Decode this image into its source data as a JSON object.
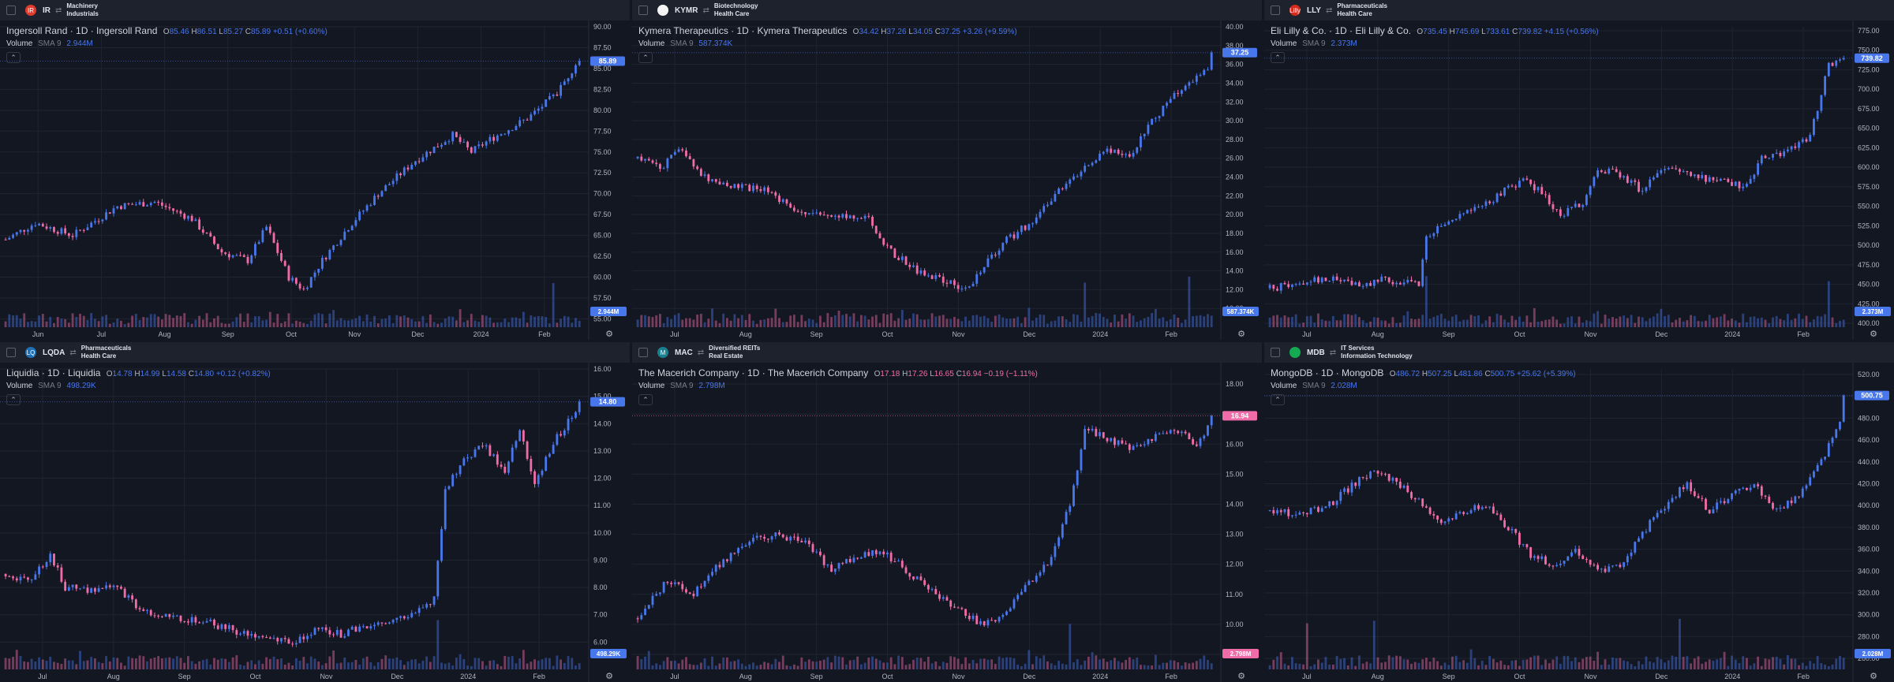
{
  "colors": {
    "up": "#4876eb",
    "down": "#f06ca8",
    "bg": "#131722",
    "grid": "#1f2430",
    "text": "#b2b5be"
  },
  "panels": [
    {
      "ticker": "IR",
      "sector": "Machinery",
      "industry": "Industrials",
      "logo_icon": "ir-logo-icon",
      "logo_color": "#e23b2d",
      "logo_text": "IR",
      "title": "Ingersoll Rand · 1D · Ingersoll Rand",
      "o": "85.46",
      "h": "86.51",
      "l": "85.27",
      "c": "85.89",
      "chg": "+0.51 (+0.60%)",
      "chg_dir": "up",
      "volume_label": "Volume",
      "sma_label": "SMA 9",
      "volume_sma": "2.944M",
      "last_price_tag": "85.89",
      "volume_tag": "2.944M",
      "chart_data": {
        "type": "candlestick",
        "series_name": "IR",
        "y_ticks": [
          "90.00",
          "87.50",
          "85.00",
          "82.50",
          "80.00",
          "77.50",
          "75.00",
          "72.50",
          "70.00",
          "67.50",
          "65.00",
          "62.50",
          "60.00",
          "57.50",
          "55.00"
        ],
        "ylim": [
          54,
          90
        ],
        "x_ticks": [
          "Jun",
          "Jul",
          "Aug",
          "Sep",
          "Oct",
          "Nov",
          "Dec",
          "2024",
          "Feb"
        ],
        "keypoints": [
          [
            0,
            64.5
          ],
          [
            8,
            66.5
          ],
          [
            18,
            65
          ],
          [
            30,
            68.5
          ],
          [
            40,
            69
          ],
          [
            50,
            67
          ],
          [
            58,
            63
          ],
          [
            65,
            62
          ],
          [
            70,
            66
          ],
          [
            76,
            60
          ],
          [
            80,
            58.5
          ],
          [
            85,
            62
          ],
          [
            92,
            66
          ],
          [
            100,
            70
          ],
          [
            110,
            74
          ],
          [
            120,
            77
          ],
          [
            125,
            75
          ],
          [
            130,
            76.5
          ],
          [
            140,
            79
          ],
          [
            148,
            82
          ],
          [
            155,
            87
          ]
        ],
        "last_price": 85.89,
        "bars": 155,
        "volume_spike": [
          147
        ]
      }
    },
    {
      "ticker": "KYMR",
      "sector": "Biotechnology",
      "industry": "Health Care",
      "logo_icon": "kymr-logo-icon",
      "logo_color": "#f5f5f5",
      "logo_text": "",
      "title": "Kymera Therapeutics · 1D · Kymera Therapeutics",
      "o": "34.42",
      "h": "37.26",
      "l": "34.05",
      "c": "37.25",
      "chg": "+3.26 (+9.59%)",
      "chg_dir": "up",
      "volume_label": "Volume",
      "sma_label": "SMA 9",
      "volume_sma": "587.374K",
      "last_price_tag": "37.25",
      "volume_tag": "587.374K",
      "chart_data": {
        "type": "candlestick",
        "series_name": "KYMR",
        "y_ticks": [
          "40.00",
          "38.00",
          "36.00",
          "34.00",
          "32.00",
          "30.00",
          "28.00",
          "26.00",
          "24.00",
          "22.00",
          "20.00",
          "18.00",
          "16.00",
          "14.00",
          "12.00",
          "10.00"
        ],
        "ylim": [
          8,
          40
        ],
        "x_ticks": [
          "Jul",
          "Aug",
          "Sep",
          "Oct",
          "Nov",
          "Dec",
          "2024",
          "Feb"
        ],
        "keypoints": [
          [
            0,
            26
          ],
          [
            6,
            25
          ],
          [
            12,
            27
          ],
          [
            18,
            24
          ],
          [
            25,
            23
          ],
          [
            35,
            22.5
          ],
          [
            45,
            20
          ],
          [
            55,
            20
          ],
          [
            62,
            19.5
          ],
          [
            68,
            16
          ],
          [
            75,
            14
          ],
          [
            82,
            13
          ],
          [
            88,
            12
          ],
          [
            92,
            14
          ],
          [
            98,
            17
          ],
          [
            105,
            19
          ],
          [
            112,
            22
          ],
          [
            120,
            25
          ],
          [
            126,
            27
          ],
          [
            132,
            26
          ],
          [
            138,
            30
          ],
          [
            145,
            33
          ],
          [
            152,
            35
          ],
          [
            155,
            37.3
          ]
        ],
        "last_price": 37.25,
        "bars": 155,
        "volume_spike": [
          120,
          148
        ]
      }
    },
    {
      "ticker": "LLY",
      "sector": "Pharmaceuticals",
      "industry": "Health Care",
      "logo_icon": "lly-logo-icon",
      "logo_color": "#d52b1e",
      "logo_text": "Lilly",
      "title": "Eli Lilly & Co. · 1D · Eli Lilly & Co.",
      "o": "735.45",
      "h": "745.69",
      "l": "733.61",
      "c": "739.82",
      "chg": "+4.15 (+0.56%)",
      "chg_dir": "up",
      "volume_label": "Volume",
      "sma_label": "SMA 9",
      "volume_sma": "2.373M",
      "last_price_tag": "739.82",
      "volume_tag": "2.373M",
      "chart_data": {
        "type": "candlestick",
        "series_name": "LLY",
        "y_ticks": [
          "775.00",
          "750.00",
          "725.00",
          "700.00",
          "675.00",
          "650.00",
          "625.00",
          "600.00",
          "575.00",
          "550.00",
          "525.00",
          "500.00",
          "475.00",
          "450.00",
          "425.00",
          "400.00"
        ],
        "ylim": [
          395,
          780
        ],
        "x_ticks": [
          "Jul",
          "Aug",
          "Sep",
          "Oct",
          "Nov",
          "Dec",
          "2024",
          "Feb"
        ],
        "keypoints": [
          [
            0,
            445
          ],
          [
            8,
            450
          ],
          [
            15,
            458
          ],
          [
            20,
            455
          ],
          [
            25,
            448
          ],
          [
            30,
            456
          ],
          [
            35,
            452
          ],
          [
            40,
            450
          ],
          [
            42,
            510
          ],
          [
            48,
            530
          ],
          [
            55,
            545
          ],
          [
            60,
            560
          ],
          [
            68,
            585
          ],
          [
            72,
            570
          ],
          [
            78,
            540
          ],
          [
            84,
            555
          ],
          [
            88,
            600
          ],
          [
            94,
            590
          ],
          [
            100,
            570
          ],
          [
            106,
            600
          ],
          [
            112,
            590
          ],
          [
            118,
            585
          ],
          [
            124,
            580
          ],
          [
            128,
            575
          ],
          [
            132,
            610
          ],
          [
            138,
            620
          ],
          [
            145,
            640
          ],
          [
            150,
            730
          ],
          [
            155,
            740
          ]
        ],
        "last_price": 739.82,
        "bars": 155,
        "volume_spike": [
          42,
          150
        ]
      }
    },
    {
      "ticker": "LQDA",
      "sector": "Pharmaceuticals",
      "industry": "Health Care",
      "logo_icon": "lqda-logo-icon",
      "logo_color": "#1f6fb5",
      "logo_text": "LQ",
      "title": "Liquidia · 1D · Liquidia",
      "o": "14.78",
      "h": "14.99",
      "l": "14.58",
      "c": "14.80",
      "chg": "+0.12 (+0.82%)",
      "chg_dir": "up",
      "volume_label": "Volume",
      "sma_label": "SMA 9",
      "volume_sma": "498.29K",
      "last_price_tag": "14.80",
      "volume_tag": "498.29K",
      "chart_data": {
        "type": "candlestick",
        "series_name": "LQDA",
        "y_ticks": [
          "16.00",
          "15.00",
          "14.00",
          "13.00",
          "12.00",
          "11.00",
          "10.00",
          "9.00",
          "8.00",
          "7.00",
          "6.00"
        ],
        "ylim": [
          5,
          16
        ],
        "x_ticks": [
          "Jul",
          "Aug",
          "Sep",
          "Oct",
          "Nov",
          "Dec",
          "2024",
          "Feb"
        ],
        "keypoints": [
          [
            0,
            8.5
          ],
          [
            6,
            8.2
          ],
          [
            12,
            9.2
          ],
          [
            16,
            8.0
          ],
          [
            22,
            7.9
          ],
          [
            30,
            8.0
          ],
          [
            36,
            7.2
          ],
          [
            45,
            6.9
          ],
          [
            55,
            6.7
          ],
          [
            62,
            6.4
          ],
          [
            70,
            6.2
          ],
          [
            78,
            6.0
          ],
          [
            84,
            6.5
          ],
          [
            90,
            6.3
          ],
          [
            96,
            6.6
          ],
          [
            102,
            6.8
          ],
          [
            108,
            7.0
          ],
          [
            112,
            7.2
          ],
          [
            115,
            7.6
          ],
          [
            118,
            11.5
          ],
          [
            122,
            12.5
          ],
          [
            128,
            13.3
          ],
          [
            134,
            12.2
          ],
          [
            138,
            13.8
          ],
          [
            142,
            11.8
          ],
          [
            148,
            13.5
          ],
          [
            155,
            14.8
          ]
        ],
        "last_price": 14.8,
        "bars": 155,
        "volume_spike": [
          116
        ]
      }
    },
    {
      "ticker": "MAC",
      "sector": "Diversified REITs",
      "industry": "Real Estate",
      "logo_icon": "mac-logo-icon",
      "logo_color": "#1a7f8e",
      "logo_text": "M",
      "title": "The Macerich Company · 1D · The Macerich Company",
      "o": "17.18",
      "h": "17.26",
      "l": "16.65",
      "c": "16.94",
      "chg": "−0.19 (−1.11%)",
      "chg_dir": "down",
      "volume_label": "Volume",
      "sma_label": "SMA 9",
      "volume_sma": "2.798M",
      "last_price_tag": "16.94",
      "volume_tag": "2.798M",
      "chart_data": {
        "type": "candlestick",
        "series_name": "MAC",
        "y_ticks": [
          "18.00",
          "17.00",
          "16.00",
          "15.00",
          "14.00",
          "13.00",
          "12.00",
          "11.00",
          "10.00",
          "9.00"
        ],
        "ylim": [
          8.5,
          18.5
        ],
        "x_ticks": [
          "Jul",
          "Aug",
          "Sep",
          "Oct",
          "Nov",
          "Dec",
          "2024",
          "Feb"
        ],
        "keypoints": [
          [
            0,
            10.2
          ],
          [
            8,
            11.5
          ],
          [
            15,
            11.0
          ],
          [
            22,
            12.0
          ],
          [
            30,
            12.8
          ],
          [
            38,
            13.0
          ],
          [
            45,
            12.7
          ],
          [
            52,
            11.8
          ],
          [
            58,
            12.2
          ],
          [
            65,
            12.5
          ],
          [
            72,
            11.8
          ],
          [
            80,
            11.0
          ],
          [
            86,
            10.5
          ],
          [
            92,
            10.0
          ],
          [
            98,
            10.3
          ],
          [
            104,
            11.2
          ],
          [
            110,
            12.0
          ],
          [
            116,
            14.0
          ],
          [
            120,
            16.5
          ],
          [
            126,
            16.2
          ],
          [
            132,
            15.8
          ],
          [
            138,
            16.2
          ],
          [
            144,
            16.5
          ],
          [
            150,
            16.0
          ],
          [
            155,
            16.9
          ]
        ],
        "last_price": 16.94,
        "bars": 155,
        "volume_spike": [
          116
        ]
      }
    },
    {
      "ticker": "MDB",
      "sector": "IT Services",
      "industry": "Information Technology",
      "logo_icon": "mdb-logo-icon",
      "logo_color": "#13aa52",
      "logo_text": "",
      "title": "MongoDB · 1D · MongoDB",
      "o": "486.72",
      "h": "507.25",
      "l": "481.86",
      "c": "500.75",
      "chg": "+25.62 (+5.39%)",
      "chg_dir": "up",
      "volume_label": "Volume",
      "sma_label": "SMA 9",
      "volume_sma": "2.028M",
      "last_price_tag": "500.75",
      "volume_tag": "2.028M",
      "chart_data": {
        "type": "candlestick",
        "series_name": "MDB",
        "y_ticks": [
          "520.00",
          "500.00",
          "480.00",
          "460.00",
          "440.00",
          "420.00",
          "400.00",
          "380.00",
          "360.00",
          "340.00",
          "320.00",
          "300.00",
          "280.00",
          "260.00"
        ],
        "ylim": [
          250,
          525
        ],
        "x_ticks": [
          "Jul",
          "Aug",
          "Sep",
          "Oct",
          "Nov",
          "Dec",
          "2024",
          "Feb"
        ],
        "keypoints": [
          [
            0,
            395
          ],
          [
            8,
            392
          ],
          [
            15,
            398
          ],
          [
            22,
            418
          ],
          [
            28,
            432
          ],
          [
            34,
            420
          ],
          [
            40,
            405
          ],
          [
            46,
            385
          ],
          [
            52,
            395
          ],
          [
            58,
            400
          ],
          [
            64,
            380
          ],
          [
            70,
            355
          ],
          [
            76,
            345
          ],
          [
            82,
            360
          ],
          [
            88,
            340
          ],
          [
            94,
            345
          ],
          [
            100,
            375
          ],
          [
            106,
            400
          ],
          [
            112,
            420
          ],
          [
            118,
            395
          ],
          [
            124,
            410
          ],
          [
            130,
            420
          ],
          [
            136,
            395
          ],
          [
            142,
            410
          ],
          [
            148,
            440
          ],
          [
            152,
            470
          ],
          [
            155,
            500
          ]
        ],
        "last_price": 500.75,
        "bars": 155,
        "volume_spike": [
          10,
          28,
          110
        ]
      }
    }
  ]
}
